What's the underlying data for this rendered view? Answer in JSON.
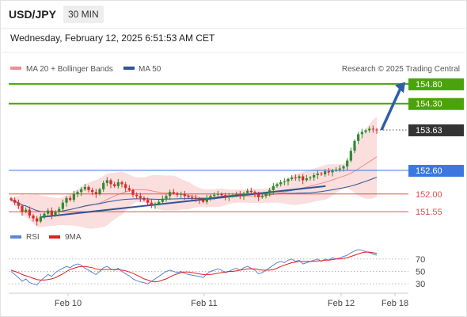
{
  "header": {
    "symbol": "USD/JPY",
    "timeframe": "30 MIN"
  },
  "datetime": "Wednesday, February 12, 2025 6:51:53 AM CET",
  "legend": {
    "bollinger": "MA 20 + Bollinger Bands",
    "ma50": "MA 50",
    "credit": "Research © 2025 Trading Central",
    "rsi": "RSI",
    "rsi_ma": "9MA"
  },
  "colors": {
    "bull": "#2e8b2e",
    "bear": "#d62b2b",
    "ma20": "#f08c8c",
    "band": "#f9d0d0",
    "ma50": "#2f5597",
    "target": "#4aa30a",
    "pivot": "#3a78e0",
    "support": "#e05050",
    "last": "#333333",
    "arrow": "#2f5da8",
    "rsi": "#5b85d6",
    "rsi_ma": "#e02020"
  },
  "chart_data": [
    {
      "type": "candlestick",
      "title": "USD/JPY",
      "timeframe": "30 MIN",
      "x_tick_labels": [
        "Feb 10",
        "Feb 11",
        "Feb 12",
        "Feb 18"
      ],
      "ylim": [
        151.25,
        155.0
      ],
      "last_price": 153.63,
      "levels": [
        {
          "label": "154.80",
          "value": 154.8,
          "kind": "target"
        },
        {
          "label": "154.30",
          "value": 154.3,
          "kind": "target"
        },
        {
          "label": "153.63",
          "value": 153.63,
          "kind": "last"
        },
        {
          "label": "152.60",
          "value": 152.6,
          "kind": "pivot"
        },
        {
          "label": "152.00",
          "value": 152.0,
          "kind": "support"
        },
        {
          "label": "151.55",
          "value": 151.55,
          "kind": "support"
        }
      ],
      "close_series": [
        151.85,
        151.78,
        151.7,
        151.55,
        151.6,
        151.45,
        151.38,
        151.3,
        151.42,
        151.5,
        151.58,
        151.46,
        151.55,
        151.62,
        151.78,
        151.9,
        151.85,
        152.0,
        152.05,
        152.12,
        152.18,
        152.1,
        152.05,
        152.0,
        152.12,
        152.28,
        152.35,
        152.25,
        152.2,
        152.3,
        152.25,
        152.15,
        152.1,
        151.98,
        151.95,
        151.9,
        151.85,
        151.78,
        151.72,
        151.75,
        151.8,
        151.88,
        151.95,
        152.05,
        152.02,
        151.98,
        152.0,
        151.95,
        151.92,
        151.9,
        151.88,
        151.85,
        151.8,
        151.9,
        151.95,
        151.98,
        152.0,
        151.97,
        151.92,
        151.95,
        151.98,
        152.0,
        151.95,
        152.02,
        152.08,
        152.05,
        152.0,
        151.92,
        151.95,
        152.02,
        152.1,
        152.2,
        152.25,
        152.3,
        152.32,
        152.38,
        152.42,
        152.4,
        152.45,
        152.35,
        152.4,
        152.42,
        152.48,
        152.52,
        152.5,
        152.58,
        152.55,
        152.6,
        152.62,
        152.65,
        152.7,
        152.85,
        153.1,
        153.35,
        153.52,
        153.58,
        153.62,
        153.66,
        153.64,
        153.63
      ],
      "trendlines": [
        {
          "name": "lower",
          "from": 0.08,
          "to": 0.86,
          "y_from": 151.41,
          "y_to": 152.2
        }
      ],
      "projection": {
        "from_value": 153.63,
        "to_value": 154.85
      }
    },
    {
      "type": "line",
      "title": "RSI",
      "yticks": [
        70,
        50,
        30
      ],
      "ylim": [
        20,
        85
      ],
      "series": [
        {
          "name": "RSI",
          "values": [
            50,
            45,
            40,
            34,
            38,
            32,
            30,
            28,
            35,
            40,
            45,
            42,
            48,
            52,
            55,
            58,
            56,
            60,
            62,
            60,
            55,
            52,
            48,
            45,
            50,
            56,
            58,
            54,
            52,
            55,
            50,
            46,
            43,
            38,
            35,
            33,
            32,
            30,
            34,
            38,
            42,
            46,
            50,
            52,
            50,
            48,
            50,
            47,
            45,
            44,
            43,
            42,
            40,
            46,
            50,
            52,
            54,
            52,
            48,
            50,
            53,
            55,
            52,
            56,
            58,
            55,
            52,
            46,
            48,
            52,
            56,
            60,
            64,
            66,
            64,
            68,
            70,
            66,
            68,
            62,
            64,
            66,
            68,
            70,
            66,
            70,
            68,
            72,
            70,
            72,
            74,
            76,
            80,
            83,
            85,
            84,
            82,
            80,
            78,
            76
          ]
        },
        {
          "name": "9MA",
          "values": [
            52,
            50,
            48,
            45,
            43,
            41,
            39,
            37,
            36,
            36,
            37,
            38,
            40,
            43,
            46,
            50,
            53,
            55,
            57,
            58,
            58,
            57,
            56,
            54,
            53,
            53,
            53,
            53,
            53,
            53,
            52,
            51,
            49,
            47,
            44,
            41,
            38,
            36,
            34,
            33,
            34,
            36,
            38,
            41,
            44,
            46,
            48,
            49,
            49,
            48,
            47,
            46,
            45,
            45,
            45,
            46,
            47,
            48,
            49,
            50,
            50,
            51,
            52,
            53,
            54,
            54,
            54,
            53,
            52,
            52,
            52,
            53,
            55,
            58,
            60,
            62,
            64,
            65,
            66,
            66,
            66,
            66,
            66,
            67,
            67,
            68,
            68,
            69,
            70,
            70,
            71,
            72,
            74,
            76,
            78,
            80,
            81,
            81,
            80,
            79
          ]
        }
      ]
    }
  ]
}
